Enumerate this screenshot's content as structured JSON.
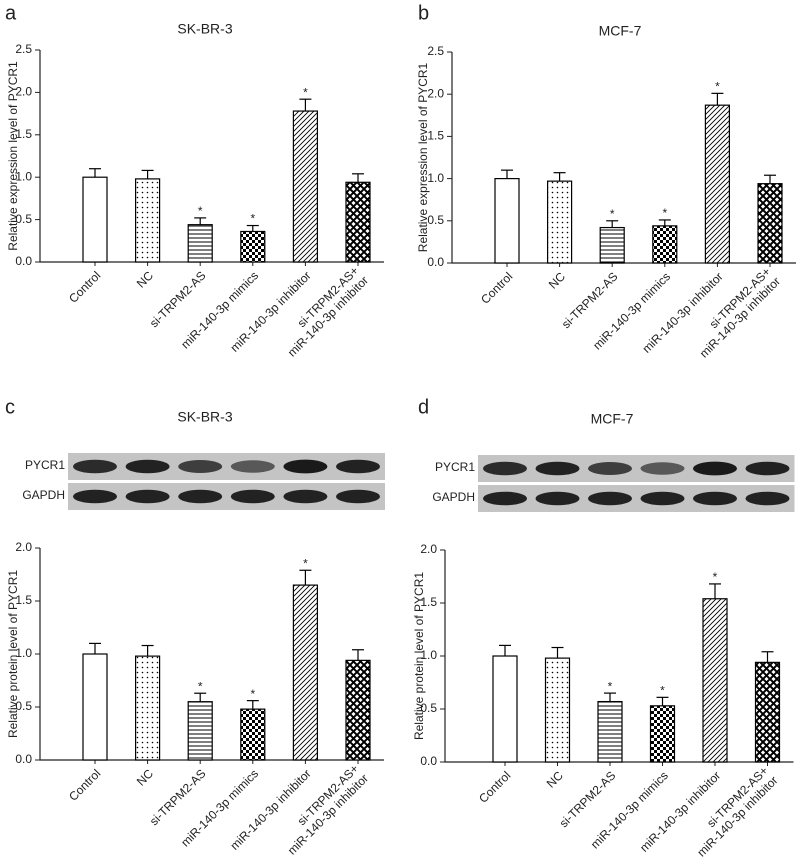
{
  "chart_data": [
    {
      "type": "bar",
      "panel": "a",
      "title": "SK-BR-3",
      "ylabel": "Relative expression level of PYCR1",
      "categories": [
        "Control",
        "NC",
        "si-TRPM2-AS",
        "miR-140-3p mimics",
        "miR-140-3p inhibitor",
        "si-TRPM2-AS+\nmiR-140-3p inhibitor"
      ],
      "values": [
        1.0,
        0.98,
        0.44,
        0.36,
        1.78,
        0.94
      ],
      "errors": [
        0.1,
        0.1,
        0.08,
        0.07,
        0.14,
        0.1
      ],
      "significant": [
        false,
        false,
        true,
        true,
        true,
        false
      ],
      "significance_label": "*",
      "patterns": [
        "none",
        "dots",
        "hlines",
        "checker",
        "diag",
        "crosshatch"
      ],
      "color": "#000000",
      "ylim": [
        0,
        2.5
      ],
      "yticks": [
        {
          "value": 0,
          "label": "0.0"
        },
        0.5,
        {
          "value": 1,
          "label": "1.0"
        },
        1.5,
        {
          "value": 2,
          "label": "2.0"
        },
        2.5
      ]
    },
    {
      "type": "bar",
      "panel": "b",
      "title": "MCF-7",
      "ylabel": "Relative expression level of PYCR1",
      "categories": [
        "Control",
        "NC",
        "si-TRPM2-AS",
        "miR-140-3p mimics",
        "miR-140-3p inhibitor",
        "si-TRPM2-AS+\nmiR-140-3p inhibitor"
      ],
      "values": [
        1.0,
        0.97,
        0.42,
        0.44,
        1.87,
        0.94
      ],
      "errors": [
        0.1,
        0.1,
        0.08,
        0.07,
        0.14,
        0.1
      ],
      "significant": [
        false,
        false,
        true,
        true,
        true,
        false
      ],
      "significance_label": "*",
      "patterns": [
        "none",
        "dots",
        "hlines",
        "checker",
        "diag",
        "crosshatch"
      ],
      "color": "#000000",
      "ylim": [
        0,
        2.5
      ],
      "yticks": [
        {
          "value": 0,
          "label": "0.0"
        },
        0.5,
        {
          "value": 1,
          "label": "1.0"
        },
        1.5,
        {
          "value": 2,
          "label": "2.0"
        },
        2.5
      ]
    },
    {
      "type": "bar",
      "panel": "c",
      "title": "SK-BR-3",
      "ylabel": "Relative protein level of PYCR1",
      "blot_labels": [
        "PYCR1",
        "GAPDH"
      ],
      "categories": [
        "Control",
        "NC",
        "si-TRPM2-AS",
        "miR-140-3p mimics",
        "miR-140-3p inhibitor",
        "si-TRPM2-AS+\nmiR-140-3p inhibitor"
      ],
      "values": [
        1.0,
        0.98,
        0.55,
        0.48,
        1.65,
        0.94
      ],
      "errors": [
        0.1,
        0.1,
        0.08,
        0.08,
        0.14,
        0.1
      ],
      "significant": [
        false,
        false,
        true,
        true,
        true,
        false
      ],
      "significance_label": "*",
      "patterns": [
        "none",
        "dots",
        "hlines",
        "checker",
        "diag",
        "crosshatch"
      ],
      "color": "#000000",
      "ylim": [
        0,
        2
      ],
      "yticks": [
        {
          "value": 0,
          "label": "0.0"
        },
        0.5,
        {
          "value": 1,
          "label": "1.0"
        },
        1.5,
        {
          "value": 2,
          "label": "2.0"
        }
      ]
    },
    {
      "type": "bar",
      "panel": "d",
      "title": "MCF-7",
      "ylabel": "Relative protein level of PYCR1",
      "blot_labels": [
        "PYCR1",
        "GAPDH"
      ],
      "categories": [
        "Control",
        "NC",
        "si-TRPM2-AS",
        "miR-140-3p mimics",
        "miR-140-3p inhibitor",
        "si-TRPM2-AS+\nmiR-140-3p inhibitor"
      ],
      "values": [
        1.0,
        0.98,
        0.57,
        0.53,
        1.54,
        0.94
      ],
      "errors": [
        0.1,
        0.1,
        0.08,
        0.08,
        0.14,
        0.1
      ],
      "significant": [
        false,
        false,
        true,
        true,
        true,
        false
      ],
      "significance_label": "*",
      "patterns": [
        "none",
        "dots",
        "hlines",
        "checker",
        "diag",
        "crosshatch"
      ],
      "color": "#000000",
      "ylim": [
        0,
        2
      ],
      "yticks": [
        {
          "value": 0,
          "label": "0.0"
        },
        0.5,
        {
          "value": 1,
          "label": "1.0"
        },
        1.5,
        {
          "value": 2,
          "label": "2.0"
        }
      ]
    }
  ]
}
